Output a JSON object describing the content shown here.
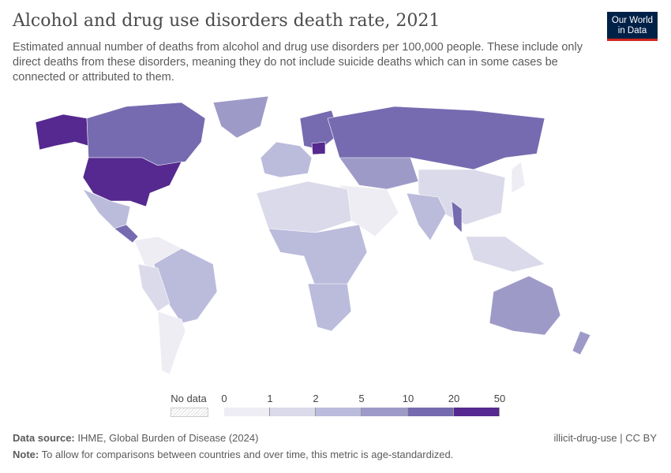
{
  "title": "Alcohol and drug use disorders death rate, 2021",
  "subtitle": "Estimated annual number of deaths from alcohol and drug use disorders per 100,000 people. These include only direct deaths from these disorders, meaning they do not include suicide deaths which can in some cases be connected or attributed to them.",
  "logo": {
    "line1": "Our World",
    "line2": "in Data"
  },
  "legend": {
    "no_data_label": "No data",
    "ticks": [
      "0",
      "1",
      "2",
      "5",
      "10",
      "20",
      "50"
    ],
    "colors": [
      "#eeedf4",
      "#dadaea",
      "#bbbcdc",
      "#9e9ac8",
      "#766bb0",
      "#55298f"
    ]
  },
  "footer": {
    "source_label": "Data source:",
    "source": "IHME, Global Burden of Disease (2024)",
    "note_label": "Note:",
    "note": "To allow for comparisons between countries and over time, this metric is age-standardized.",
    "slug": "illicit-drug-use | CC BY"
  }
}
